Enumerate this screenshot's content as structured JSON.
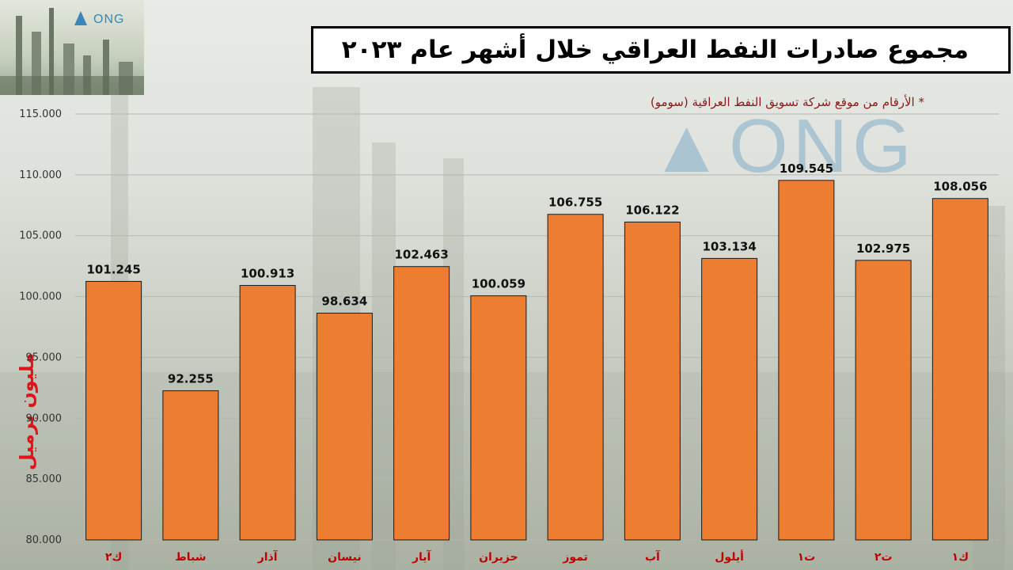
{
  "header": {
    "logo_text": "ONG",
    "title": "مجموع صادرات النفط العراقي خلال أشهر عام ٢٠٢٣",
    "subtitle": "* الأرقام من موقع شركة تسويق النفط العراقية (سومو)"
  },
  "chart_data": {
    "type": "bar",
    "title": "مجموع صادرات النفط العراقي خلال أشهر عام ٢٠٢٣",
    "ylabel": "مليون برميل",
    "categories": [
      "ك٢",
      "شباط",
      "آذار",
      "نيسان",
      "آيار",
      "حزيران",
      "تموز",
      "آب",
      "أيلول",
      "ت١",
      "ت٢",
      "ك١"
    ],
    "values": [
      101.245,
      92.255,
      100.913,
      98.634,
      102.463,
      100.059,
      106.755,
      106.122,
      103.134,
      109.545,
      102.975,
      108.056
    ],
    "value_labels": [
      "101.245",
      "92.255",
      "100.913",
      "98.634",
      "102.463",
      "100.059",
      "106.755",
      "106.122",
      "103.134",
      "109.545",
      "102.975",
      "108.056"
    ],
    "ylim": [
      80,
      115
    ],
    "yticks": [
      80,
      85,
      90,
      95,
      100,
      105,
      110,
      115
    ],
    "ytick_labels": [
      "80.000",
      "85.000",
      "90.000",
      "95.000",
      "100.000",
      "105.000",
      "110.000",
      "115.000"
    ],
    "grid": true,
    "legend": "none",
    "colors": {
      "bar": "#ed7d31",
      "bar_border": "#1a1a1a",
      "category_label": "#c00000",
      "value_label": "#111111",
      "ylabel": "#e0141a"
    }
  }
}
